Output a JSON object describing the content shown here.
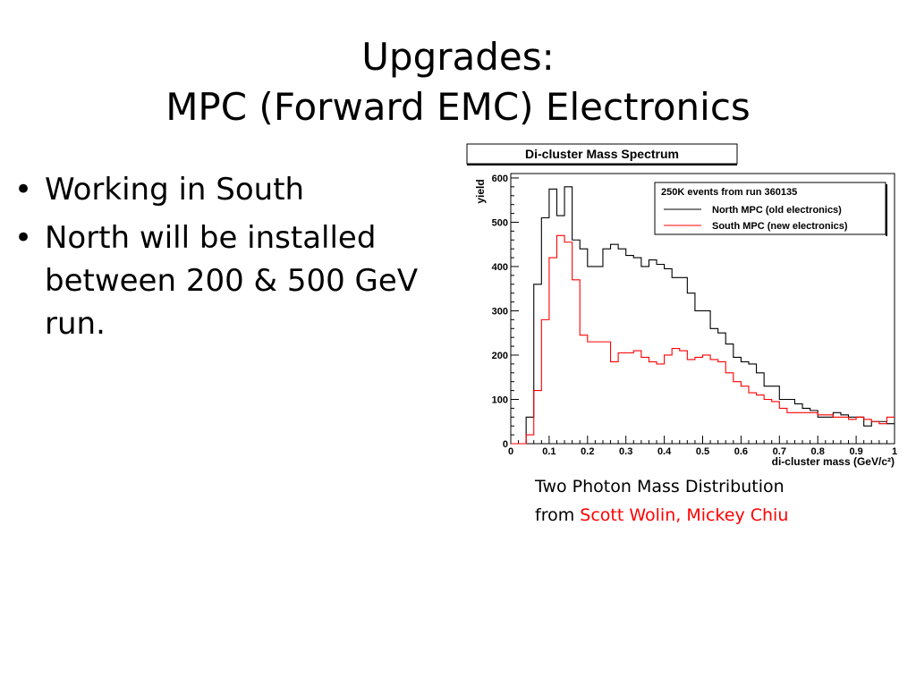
{
  "slide": {
    "title_line1": "Upgrades:",
    "title_line2": "MPC (Forward EMC) Electronics",
    "bullets": [
      "Working in South",
      "North will be installed between 200 & 500 GeV run."
    ],
    "caption_line1": "Two Photon Mass Distribution",
    "caption_prefix": "from ",
    "caption_authors": "Scott Wolin, Mickey Chiu"
  },
  "chart_data": {
    "type": "line",
    "title": "Di-cluster Mass Spectrum",
    "xlabel": "di-cluster mass (GeV/c²)",
    "ylabel": "yield",
    "xlim": [
      0,
      1
    ],
    "ylim": [
      0,
      610
    ],
    "xticks": [
      "0",
      "0.1",
      "0.2",
      "0.3",
      "0.4",
      "0.5",
      "0.6",
      "0.7",
      "0.8",
      "0.9",
      "1"
    ],
    "yticks": [
      "0",
      "100",
      "200",
      "300",
      "400",
      "500",
      "600"
    ],
    "legend_header": "250K events from run 360135",
    "legend_position": "top-right",
    "bin_width": 0.02,
    "series": [
      {
        "name": "North MPC (old electronics)",
        "color": "#000000",
        "values": [
          0,
          0,
          60,
          360,
          510,
          575,
          515,
          580,
          460,
          440,
          400,
          400,
          440,
          450,
          440,
          425,
          420,
          400,
          415,
          405,
          395,
          375,
          375,
          340,
          300,
          300,
          260,
          250,
          225,
          195,
          185,
          180,
          160,
          130,
          130,
          100,
          100,
          90,
          80,
          75,
          60,
          60,
          70,
          65,
          60,
          60,
          40,
          50,
          50,
          45
        ]
      },
      {
        "name": "South MPC (new electronics)",
        "color": "#ff0000",
        "values": [
          0,
          0,
          20,
          120,
          280,
          420,
          470,
          455,
          370,
          245,
          230,
          230,
          230,
          185,
          205,
          205,
          210,
          195,
          185,
          180,
          200,
          215,
          210,
          190,
          195,
          200,
          190,
          185,
          160,
          140,
          130,
          115,
          110,
          100,
          95,
          80,
          70,
          70,
          70,
          70,
          65,
          65,
          60,
          60,
          55,
          60,
          55,
          50,
          45,
          60
        ]
      }
    ]
  }
}
